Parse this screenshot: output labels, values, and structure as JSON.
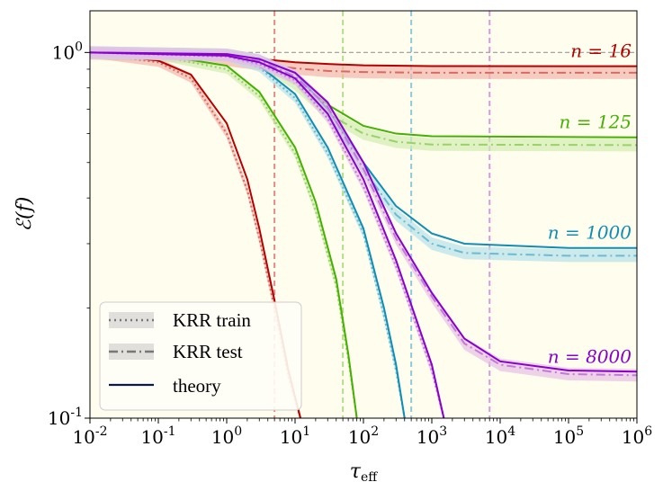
{
  "chart_data": {
    "type": "line",
    "xscale": "log",
    "yscale": "log",
    "xlim": [
      0.01,
      1000000
    ],
    "ylim": [
      0.1,
      1.3
    ],
    "xlabel": "τ_eff",
    "ylabel": "ℰ(f)",
    "xticks": [
      {
        "value": 0.01,
        "base": "10",
        "exp": "-2"
      },
      {
        "value": 0.1,
        "base": "10",
        "exp": "-1"
      },
      {
        "value": 1,
        "base": "10",
        "exp": "0"
      },
      {
        "value": 10,
        "base": "10",
        "exp": "1"
      },
      {
        "value": 100,
        "base": "10",
        "exp": "2"
      },
      {
        "value": 1000,
        "base": "10",
        "exp": "3"
      },
      {
        "value": 10000,
        "base": "10",
        "exp": "4"
      },
      {
        "value": 100000,
        "base": "10",
        "exp": "5"
      },
      {
        "value": 1000000,
        "base": "10",
        "exp": "6"
      }
    ],
    "yticks": [
      {
        "value": 1,
        "base": "10",
        "exp": "0"
      },
      {
        "value": 0.1,
        "base": "10",
        "exp": "-1"
      }
    ],
    "reference_hline": 1.0,
    "legend": {
      "placement": "lower-left",
      "entries": [
        {
          "label": "KRR train",
          "style": "dotted"
        },
        {
          "label": "KRR test",
          "style": "dashdot"
        },
        {
          "label": "theory",
          "style": "solid"
        }
      ]
    },
    "series": [
      {
        "n_label": "n = 16",
        "color": "#b50000",
        "light": "#d96a63",
        "band": "#f2b7ad",
        "vline_x": 5,
        "vline_color": "#e38d8a",
        "theory_test": [
          [
            0.01,
            0.997
          ],
          [
            0.1,
            0.99
          ],
          [
            1,
            0.975
          ],
          [
            3,
            0.96
          ],
          [
            10,
            0.94
          ],
          [
            30,
            0.93
          ],
          [
            100,
            0.922
          ],
          [
            1000,
            0.918
          ],
          [
            1000000,
            0.917
          ]
        ],
        "krr_test": [
          [
            0.01,
            0.995
          ],
          [
            0.1,
            0.985
          ],
          [
            1,
            0.955
          ],
          [
            3,
            0.93
          ],
          [
            10,
            0.905
          ],
          [
            30,
            0.89
          ],
          [
            100,
            0.884
          ],
          [
            1000,
            0.88
          ],
          [
            1000000,
            0.88
          ]
        ],
        "theory_train": [
          [
            0.01,
            0.996
          ],
          [
            0.1,
            0.95
          ],
          [
            0.3,
            0.87
          ],
          [
            1,
            0.64
          ],
          [
            2,
            0.45
          ],
          [
            3,
            0.33
          ],
          [
            5,
            0.21
          ],
          [
            8,
            0.135
          ],
          [
            12,
            0.1
          ]
        ],
        "krr_train": [
          [
            0.01,
            0.995
          ],
          [
            0.1,
            0.94
          ],
          [
            0.3,
            0.85
          ],
          [
            1,
            0.6
          ],
          [
            2,
            0.42
          ],
          [
            3,
            0.31
          ],
          [
            5,
            0.2
          ],
          [
            8,
            0.13
          ],
          [
            12,
            0.1
          ]
        ]
      },
      {
        "n_label": "n = 125",
        "color": "#44b000",
        "light": "#9bd16a",
        "band": "#d3ecb2",
        "vline_x": 50,
        "vline_color": "#b3de8a",
        "theory_test": [
          [
            0.01,
            0.999
          ],
          [
            1,
            0.99
          ],
          [
            3,
            0.96
          ],
          [
            10,
            0.85
          ],
          [
            30,
            0.72
          ],
          [
            100,
            0.63
          ],
          [
            300,
            0.6
          ],
          [
            1000,
            0.59
          ],
          [
            1000000,
            0.586
          ]
        ],
        "krr_test": [
          [
            0.01,
            0.999
          ],
          [
            1,
            0.985
          ],
          [
            3,
            0.95
          ],
          [
            10,
            0.82
          ],
          [
            30,
            0.68
          ],
          [
            100,
            0.6
          ],
          [
            300,
            0.57
          ],
          [
            1000,
            0.56
          ],
          [
            1000000,
            0.558
          ]
        ],
        "theory_train": [
          [
            0.01,
            0.999
          ],
          [
            0.1,
            0.985
          ],
          [
            1,
            0.92
          ],
          [
            3,
            0.78
          ],
          [
            10,
            0.55
          ],
          [
            20,
            0.39
          ],
          [
            40,
            0.24
          ],
          [
            60,
            0.15
          ],
          [
            80,
            0.1
          ]
        ],
        "krr_train": [
          [
            0.01,
            0.999
          ],
          [
            0.1,
            0.98
          ],
          [
            1,
            0.9
          ],
          [
            3,
            0.76
          ],
          [
            10,
            0.53
          ],
          [
            20,
            0.37
          ],
          [
            40,
            0.23
          ],
          [
            60,
            0.145
          ],
          [
            80,
            0.1
          ]
        ]
      },
      {
        "n_label": "n = 1000",
        "color": "#0f8db3",
        "light": "#6bbbd1",
        "band": "#b6e1ea",
        "vline_x": 500,
        "vline_color": "#8ec9dc",
        "theory_test": [
          [
            0.01,
            1.0
          ],
          [
            1,
            0.99
          ],
          [
            3,
            0.96
          ],
          [
            10,
            0.88
          ],
          [
            30,
            0.7
          ],
          [
            100,
            0.5
          ],
          [
            300,
            0.38
          ],
          [
            1000,
            0.32
          ],
          [
            3000,
            0.3
          ],
          [
            100000,
            0.292
          ],
          [
            1000000,
            0.292
          ]
        ],
        "krr_test": [
          [
            0.01,
            1.0
          ],
          [
            1,
            0.985
          ],
          [
            3,
            0.95
          ],
          [
            10,
            0.86
          ],
          [
            30,
            0.68
          ],
          [
            100,
            0.48
          ],
          [
            300,
            0.36
          ],
          [
            1000,
            0.3
          ],
          [
            3000,
            0.283
          ],
          [
            100000,
            0.278
          ],
          [
            1000000,
            0.278
          ]
        ],
        "theory_train": [
          [
            0.01,
            1.0
          ],
          [
            1,
            0.98
          ],
          [
            3,
            0.92
          ],
          [
            10,
            0.77
          ],
          [
            30,
            0.55
          ],
          [
            100,
            0.33
          ],
          [
            200,
            0.2
          ],
          [
            300,
            0.14
          ],
          [
            400,
            0.1
          ]
        ],
        "krr_train": [
          [
            0.01,
            1.0
          ],
          [
            1,
            0.975
          ],
          [
            3,
            0.91
          ],
          [
            10,
            0.75
          ],
          [
            30,
            0.53
          ],
          [
            100,
            0.32
          ],
          [
            200,
            0.19
          ],
          [
            300,
            0.135
          ],
          [
            400,
            0.1
          ]
        ]
      },
      {
        "n_label": "n = 8000",
        "color": "#8800cc",
        "light": "#c27ad9",
        "band": "#e6bfe6",
        "vline_x": 7000,
        "vline_color": "#d69ae0",
        "theory_test": [
          [
            0.01,
            1.0
          ],
          [
            1,
            0.99
          ],
          [
            3,
            0.96
          ],
          [
            10,
            0.88
          ],
          [
            30,
            0.73
          ],
          [
            100,
            0.5
          ],
          [
            300,
            0.32
          ],
          [
            1000,
            0.22
          ],
          [
            3000,
            0.165
          ],
          [
            10000,
            0.143
          ],
          [
            100000,
            0.135
          ],
          [
            1000000,
            0.134
          ]
        ],
        "krr_test": [
          [
            0.01,
            1.0
          ],
          [
            1,
            0.985
          ],
          [
            3,
            0.95
          ],
          [
            10,
            0.86
          ],
          [
            30,
            0.71
          ],
          [
            100,
            0.48
          ],
          [
            300,
            0.31
          ],
          [
            1000,
            0.215
          ],
          [
            3000,
            0.16
          ],
          [
            10000,
            0.14
          ],
          [
            100000,
            0.132
          ],
          [
            1000000,
            0.131
          ]
        ],
        "theory_train": [
          [
            0.01,
            1.0
          ],
          [
            1,
            0.98
          ],
          [
            3,
            0.94
          ],
          [
            10,
            0.85
          ],
          [
            30,
            0.68
          ],
          [
            100,
            0.45
          ],
          [
            300,
            0.27
          ],
          [
            1000,
            0.14
          ],
          [
            1500,
            0.1
          ]
        ],
        "krr_train": [
          [
            0.01,
            1.0
          ],
          [
            1,
            0.975
          ],
          [
            3,
            0.93
          ],
          [
            10,
            0.84
          ],
          [
            30,
            0.66
          ],
          [
            100,
            0.43
          ],
          [
            300,
            0.26
          ],
          [
            1000,
            0.135
          ],
          [
            1500,
            0.1
          ]
        ]
      }
    ]
  }
}
